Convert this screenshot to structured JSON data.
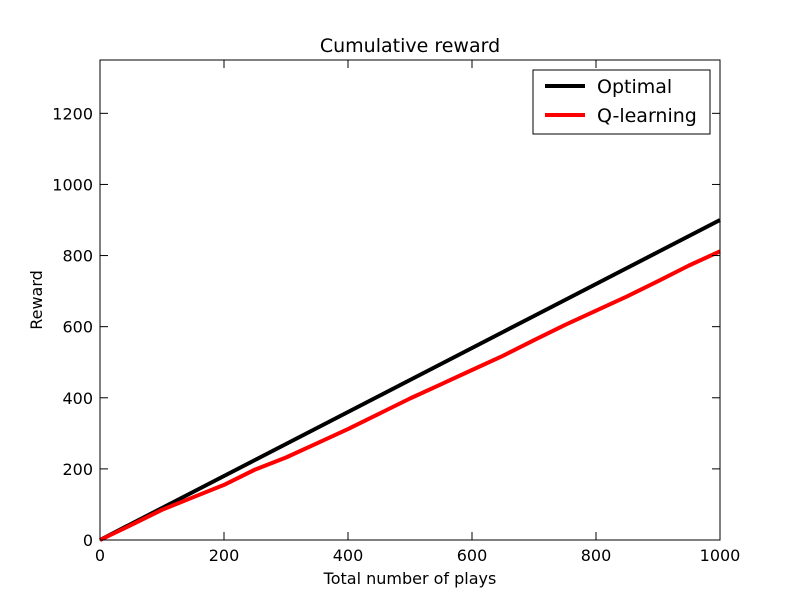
{
  "chart_data": {
    "type": "line",
    "title": "Cumulative reward",
    "xlabel": "Total number of plays",
    "ylabel": "Reward",
    "xlim": [
      0,
      1000
    ],
    "ylim": [
      0,
      1350
    ],
    "xticks": [
      0,
      200,
      400,
      600,
      800,
      1000
    ],
    "yticks": [
      0,
      200,
      400,
      600,
      800,
      1000,
      1200
    ],
    "grid": false,
    "legend": "top-right",
    "x": [
      0,
      50,
      100,
      150,
      200,
      250,
      300,
      350,
      400,
      450,
      500,
      550,
      600,
      650,
      700,
      750,
      800,
      850,
      900,
      950,
      1000
    ],
    "series": [
      {
        "name": "Optimal",
        "color": "#000000",
        "values": [
          0,
          45,
          90,
          135,
          180,
          225,
          270,
          315,
          360,
          405,
          450,
          495,
          540,
          585,
          630,
          675,
          720,
          765,
          810,
          855,
          900
        ]
      },
      {
        "name": "Q-learning",
        "color": "#ff0000",
        "values": [
          0,
          42,
          85,
          120,
          155,
          198,
          232,
          272,
          312,
          355,
          398,
          438,
          478,
          518,
          562,
          605,
          645,
          685,
          728,
          772,
          812
        ]
      }
    ]
  }
}
